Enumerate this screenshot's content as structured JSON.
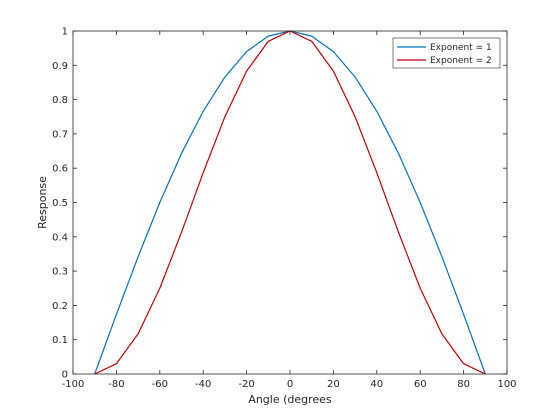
{
  "chart_data": {
    "type": "line",
    "title": "",
    "xlabel": "Angle (degrees",
    "ylabel": "Response",
    "xlim": [
      -100,
      100
    ],
    "ylim": [
      0,
      1
    ],
    "xticks": [
      -100,
      -80,
      -60,
      -40,
      -20,
      0,
      20,
      40,
      60,
      80,
      100
    ],
    "yticks": [
      0,
      0.1,
      0.2,
      0.3,
      0.4,
      0.5,
      0.6,
      0.7,
      0.8,
      0.9,
      1
    ],
    "grid": false,
    "legend_position": "top-right",
    "x": [
      -90,
      -80,
      -70,
      -60,
      -50,
      -40,
      -30,
      -20,
      -10,
      0,
      10,
      20,
      30,
      40,
      50,
      60,
      70,
      80,
      90
    ],
    "series": [
      {
        "name": "Exponent = 1",
        "color": "#0072BD",
        "values": [
          0,
          0.174,
          0.342,
          0.5,
          0.643,
          0.766,
          0.866,
          0.94,
          0.985,
          1,
          0.985,
          0.94,
          0.866,
          0.766,
          0.643,
          0.5,
          0.342,
          0.174,
          0
        ]
      },
      {
        "name": "Exponent = 2",
        "color": "#C00000",
        "values": [
          0,
          0.03,
          0.117,
          0.25,
          0.413,
          0.587,
          0.75,
          0.883,
          0.97,
          1,
          0.97,
          0.883,
          0.75,
          0.587,
          0.413,
          0.25,
          0.117,
          0.03,
          0
        ]
      }
    ]
  }
}
